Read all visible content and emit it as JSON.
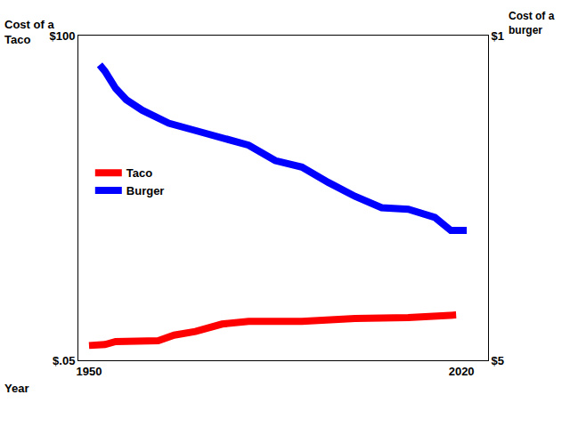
{
  "chart_data": {
    "type": "line",
    "xlabel": "Year",
    "ylabel": "Cost of a Taco",
    "y2label": "Cost of a burger",
    "xlim": [
      1948,
      2025
    ],
    "xticks": [
      1950,
      2020
    ],
    "ylim": [
      0.05,
      100
    ],
    "yticks": [
      {
        "value": 0.05,
        "label": "$.05"
      },
      {
        "value": 100,
        "label": "$100"
      }
    ],
    "y2lim": [
      5,
      1
    ],
    "y2ticks": [
      {
        "value": 1,
        "label": "$1"
      },
      {
        "value": 5,
        "label": "$5"
      }
    ],
    "grid": false,
    "legend": "left",
    "series": [
      {
        "name": "Taco",
        "color": "#ff0000",
        "x": [
          1950,
          1953,
          1955,
          1960,
          1963,
          1966,
          1970,
          1975,
          1980,
          1990,
          1995,
          2000,
          2010,
          2015,
          2019
        ],
        "values": [
          4.6,
          4.9,
          5.8,
          5.8,
          6.1,
          7.8,
          8.9,
          11.2,
          12.0,
          12.0,
          12.6,
          12.9,
          13.2,
          13.8,
          14.0
        ]
      },
      {
        "name": "Burger",
        "color": "#0000ff",
        "axis": "y2",
        "x": [
          1952,
          1953,
          1955,
          1957,
          1960,
          1965,
          1970,
          1975,
          1980,
          1985,
          1990,
          1995,
          2000,
          2005,
          2010,
          2015,
          2018,
          2021
        ],
        "values": [
          1.36,
          1.44,
          1.65,
          1.79,
          1.92,
          2.08,
          2.17,
          2.25,
          2.35,
          2.54,
          2.62,
          2.81,
          2.98,
          3.12,
          3.14,
          3.24,
          3.4,
          3.4
        ]
      }
    ]
  }
}
